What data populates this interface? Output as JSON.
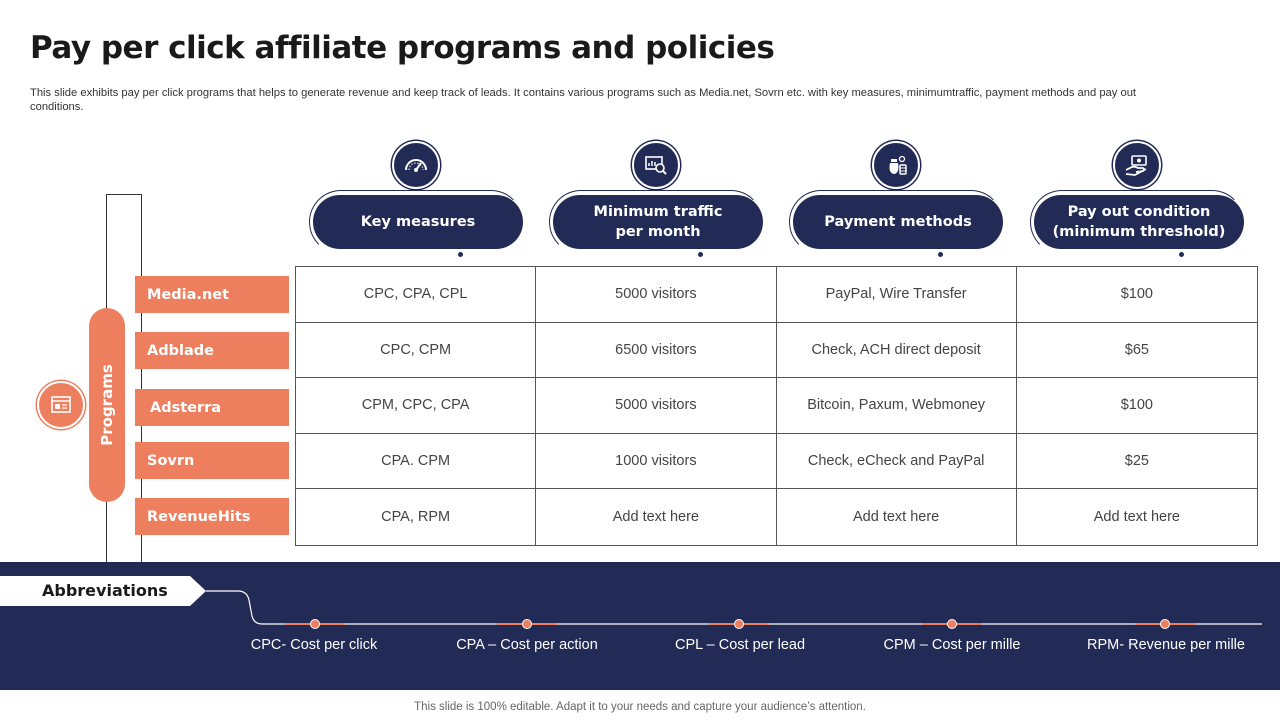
{
  "title": "Pay per click affiliate programs and policies",
  "subtitle": "This slide exhibits pay per click programs that helps to generate revenue and keep track of leads. It contains various programs such as Media.net, Sovrn etc. with key measures, minimumtraffic, payment methods and pay out conditions.",
  "columns": [
    {
      "label_line1": "Key measures",
      "label_line2": "",
      "icon": "gauge-icon"
    },
    {
      "label_line1": "Minimum  traffic",
      "label_line2": "per month",
      "icon": "analytics-search-icon"
    },
    {
      "label_line1": "Payment methods",
      "label_line2": "",
      "icon": "money-bag-icon"
    },
    {
      "label_line1": "Pay out condition",
      "label_line2": "(minimum  threshold)",
      "icon": "cash-hand-icon"
    }
  ],
  "programs_label": "Programs",
  "programs_icon": "dashboard-icon",
  "programs": [
    "Media.net",
    "Adblade",
    "Adsterra",
    "Sovrn",
    "RevenueHits"
  ],
  "rows": [
    [
      "CPC, CPA, CPL",
      "5000 visitors",
      "PayPal, Wire Transfer",
      "$100"
    ],
    [
      "CPC, CPM",
      "6500 visitors",
      "Check, ACH direct deposit",
      "$65"
    ],
    [
      "CPM, CPC, CPA",
      "5000 visitors",
      "Bitcoin, Paxum, Webmoney",
      "$100"
    ],
    [
      "CPA. CPM",
      "1000 visitors",
      "Check, eCheck and PayPal",
      "$25"
    ],
    [
      "CPA, RPM",
      "Add text here",
      "Add text here",
      "Add text here"
    ]
  ],
  "abbreviations_label": "Abbreviations",
  "abbreviations": [
    "CPC- Cost per click",
    "CPA – Cost per action",
    "CPL – Cost per lead",
    "CPM – Cost per mille",
    "RPM- Revenue per mille"
  ],
  "footer": "This slide is 100% editable. Adapt it to your needs and capture your audience’s attention.",
  "colors": {
    "navy": "#222b55",
    "coral": "#ee7f5e"
  }
}
